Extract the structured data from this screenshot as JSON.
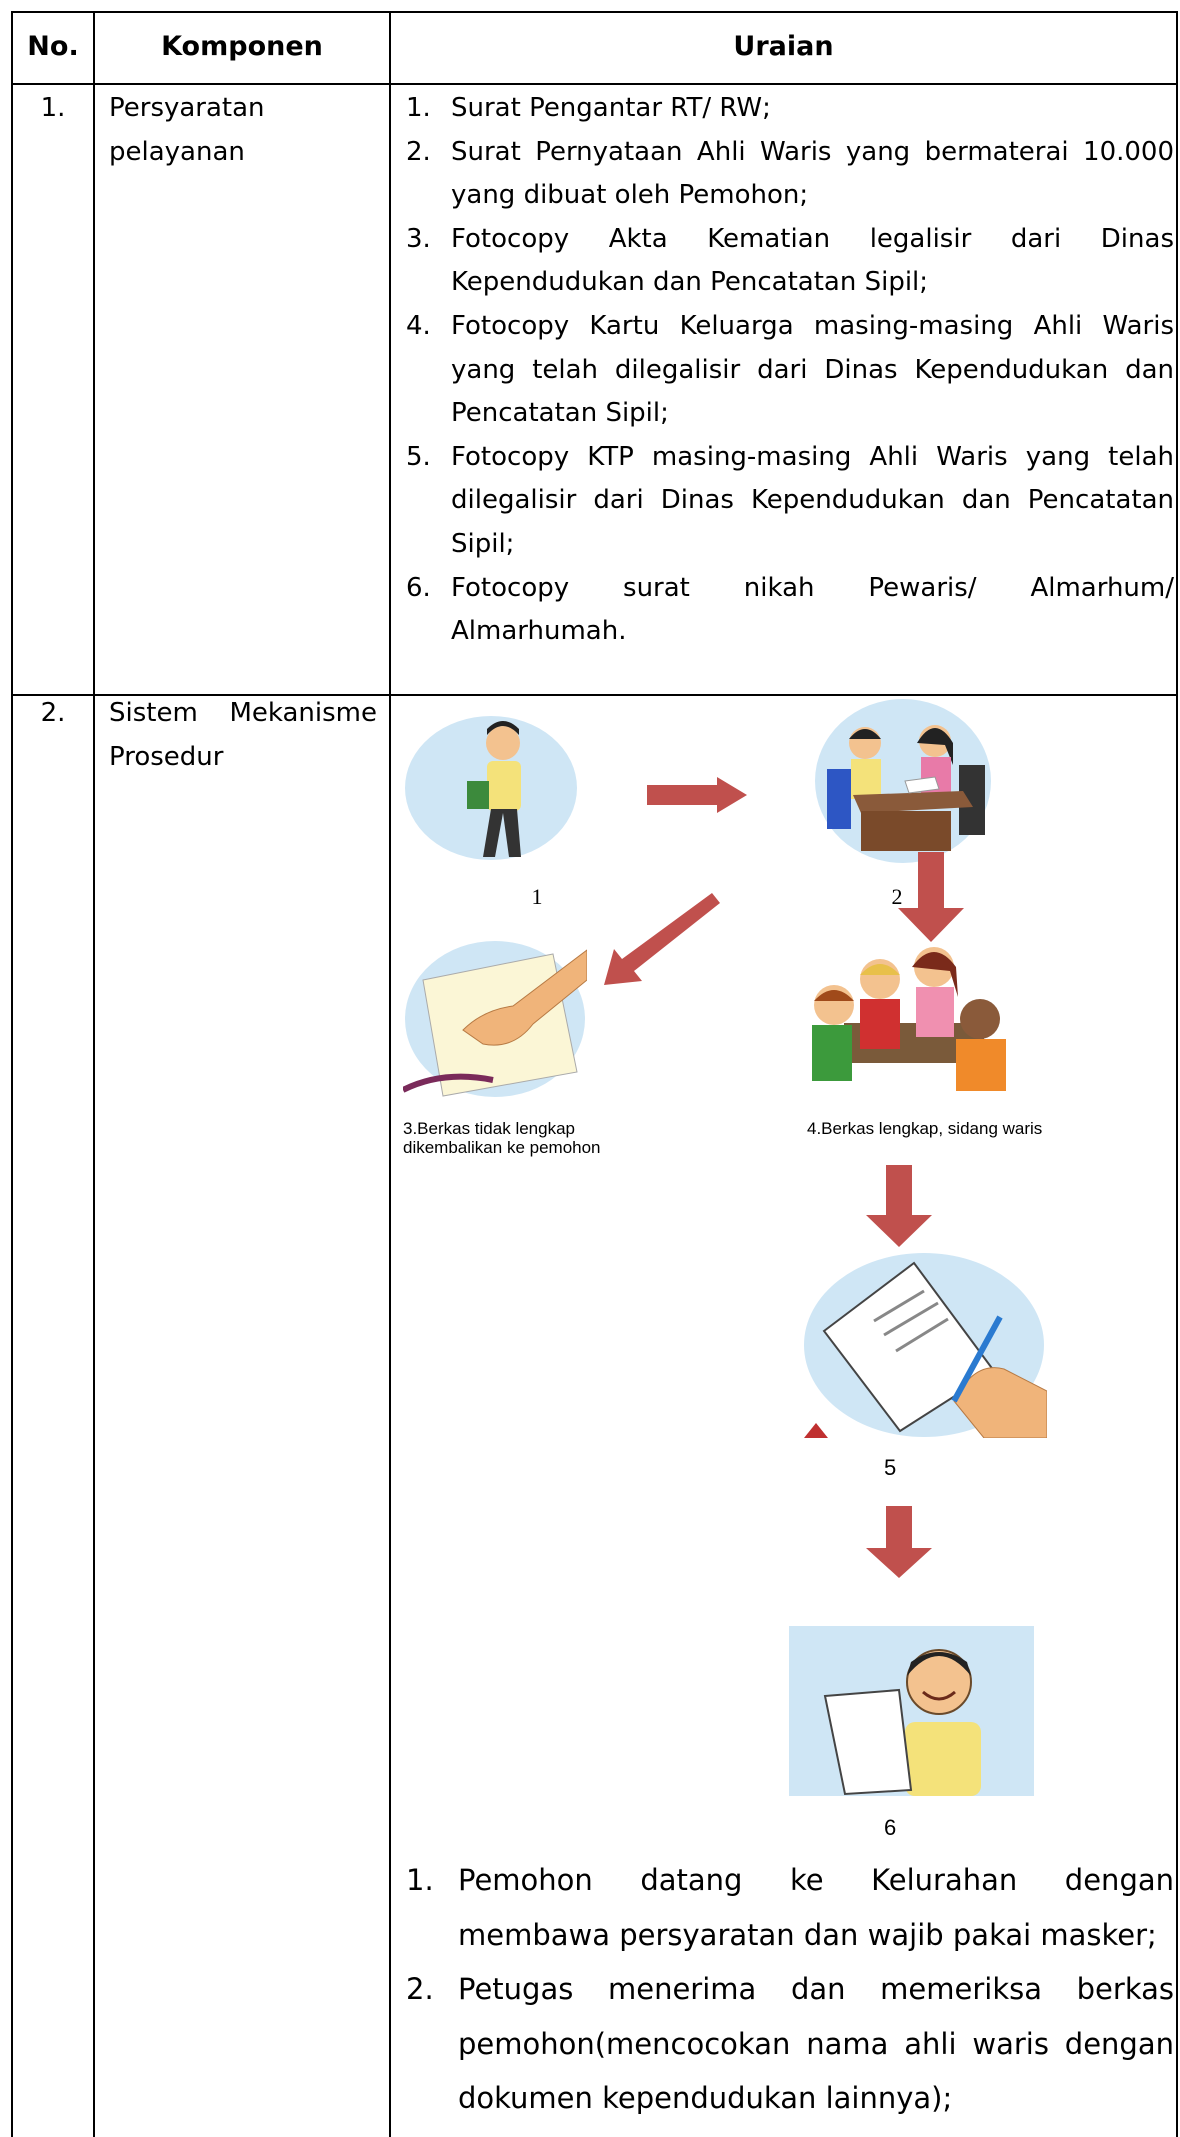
{
  "header": {
    "no": "No.",
    "komponen": "Komponen",
    "uraian": "Uraian"
  },
  "rows": [
    {
      "no": "1.",
      "komponen": "Persyaratan pelayanan",
      "items": [
        {
          "number": "1.",
          "text": "Surat Pengantar RT/ RW;"
        },
        {
          "number": "2.",
          "text": "Surat Pernyataan Ahli Waris yang bermaterai 10.000 yang dibuat oleh Pemohon;"
        },
        {
          "number": "3.",
          "text": "Fotocopy Akta Kematian legalisir dari Dinas Kependudukan dan Pencatatan Sipil;"
        },
        {
          "number": "4.",
          "text": "Fotocopy Kartu Keluarga masing-masing Ahli Waris yang telah dilegalisir dari Dinas Kependudukan dan Pencatatan Sipil;"
        },
        {
          "number": "5.",
          "text": "Fotocopy KTP masing-masing Ahli Waris yang telah dilegalisir dari Dinas Kependudukan dan Pencatatan Sipil;"
        },
        {
          "number": "6.",
          "text": "Fotocopy surat nikah Pewaris/ Almarhum/ Almarhumah."
        }
      ]
    },
    {
      "no": "2.",
      "komponen": "Sistem Mekanisme Prosedur",
      "diagram": {
        "steps": [
          {
            "label_lines": [
              "1"
            ]
          },
          {
            "label_lines": [
              "2"
            ]
          },
          {
            "label_lines": [
              "3.Berkas tidak lengkap",
              "dikembalikan ke pemohon"
            ]
          },
          {
            "label_lines": [
              "4.Berkas lengkap, sidang waris"
            ]
          },
          {
            "label_lines": [
              "5"
            ]
          },
          {
            "label_lines": [
              "6"
            ]
          }
        ]
      },
      "items": [
        {
          "number": "1.",
          "text": "Pemohon datang ke Kelurahan dengan membawa persyaratan dan wajib pakai masker;"
        },
        {
          "number": "2.",
          "text": "Petugas menerima dan memeriksa berkas pemohon(mencocokan nama ahli waris dengan dokumen kependudukan lainnya);"
        }
      ]
    }
  ]
}
